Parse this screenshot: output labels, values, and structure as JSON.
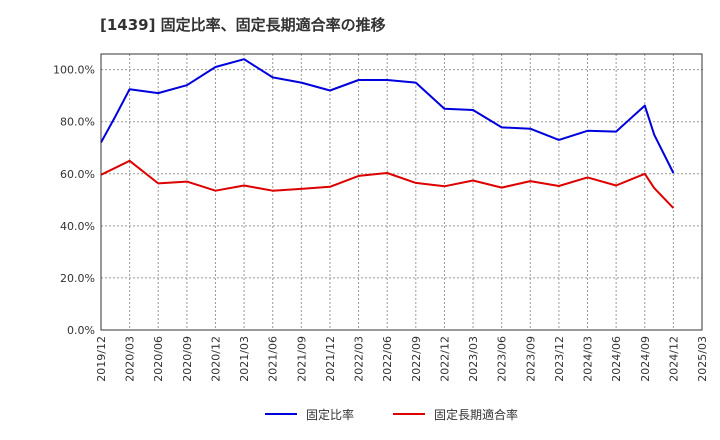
{
  "chart_data": {
    "type": "line",
    "title": "[1439]  固定比率、固定長期適合率の推移",
    "xlabel": "",
    "ylabel": "",
    "ylim": [
      0,
      106
    ],
    "y_ticks": [
      0,
      20,
      40,
      60,
      80,
      100
    ],
    "y_tick_labels": [
      "0.0%",
      "20.0%",
      "40.0%",
      "60.0%",
      "80.0%",
      "100.0%"
    ],
    "x_tick_labels": [
      "2019/12",
      "2020/03",
      "2020/06",
      "2020/09",
      "2020/12",
      "2021/03",
      "2021/06",
      "2021/09",
      "2021/12",
      "2022/03",
      "2022/06",
      "2022/09",
      "2022/12",
      "2023/03",
      "2023/06",
      "2023/09",
      "2023/12",
      "2024/03",
      "2024/06",
      "2024/09",
      "2024/12",
      "2025/03"
    ],
    "grid": true,
    "legend_position": "bottom",
    "series": [
      {
        "name": "固定比率",
        "color": "#0000dd",
        "x": [
          0,
          0.5,
          1,
          2,
          3,
          4,
          5,
          6,
          7,
          8,
          9,
          10,
          11,
          12,
          13,
          14,
          15,
          16,
          17,
          18,
          19,
          19.33,
          20
        ],
        "values": [
          72.0,
          82.0,
          92.5,
          91.0,
          94.0,
          101.0,
          104.0,
          97.0,
          95.0,
          92.0,
          96.0,
          96.0,
          95.0,
          85.0,
          84.5,
          77.8,
          77.3,
          73.0,
          76.5,
          76.2,
          86.2,
          75.0,
          60.3
        ]
      },
      {
        "name": "固定長期適合率",
        "color": "#dd0000",
        "x": [
          0,
          1,
          2,
          3,
          4,
          5,
          6,
          7,
          8,
          9,
          10,
          11,
          12,
          13,
          14,
          15,
          16,
          17,
          18,
          19,
          19.33,
          20
        ],
        "values": [
          59.6,
          65.0,
          56.3,
          57.0,
          53.5,
          55.5,
          53.5,
          54.2,
          55.0,
          59.2,
          60.3,
          56.5,
          55.2,
          57.4,
          54.7,
          57.2,
          55.3,
          58.6,
          55.5,
          60.0,
          54.5,
          46.8
        ]
      }
    ]
  }
}
